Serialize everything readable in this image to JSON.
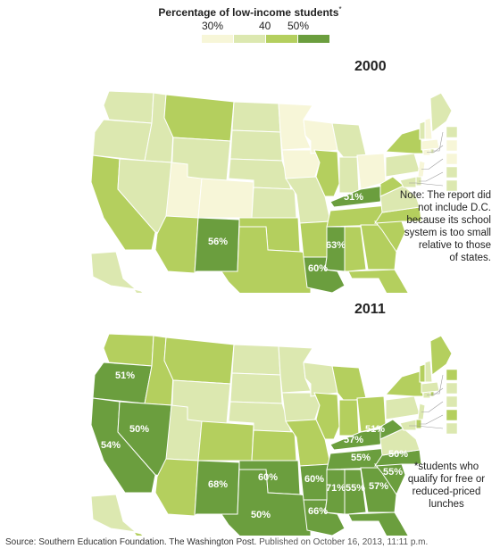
{
  "legend": {
    "title": "Percentage of low-income students",
    "title_mark": "*",
    "labels": [
      "30%",
      "40",
      "50%"
    ],
    "bins": [
      {
        "range": "below 40%",
        "color": "#f7f6d8"
      },
      {
        "range": "40–45%",
        "color": "#dce8b0"
      },
      {
        "range": "45–50%",
        "color": "#b4cf5e"
      },
      {
        "range": "50% and above",
        "color": "#6b9e3e"
      }
    ]
  },
  "maps": [
    {
      "year": "2000",
      "labels": [
        {
          "state": "NM",
          "text": "56%"
        },
        {
          "state": "KY",
          "text": "51%"
        },
        {
          "state": "MS",
          "text": "63%"
        },
        {
          "state": "LA",
          "text": "60%"
        }
      ]
    },
    {
      "year": "2011",
      "labels": [
        {
          "state": "OR",
          "text": "51%"
        },
        {
          "state": "NV",
          "text": "50%"
        },
        {
          "state": "CA",
          "text": "54%"
        },
        {
          "state": "NM",
          "text": "68%"
        },
        {
          "state": "OK",
          "text": "60%"
        },
        {
          "state": "AR",
          "text": "60%"
        },
        {
          "state": "TX",
          "text": "50%"
        },
        {
          "state": "KY",
          "text": "57%"
        },
        {
          "state": "TN",
          "text": "55%"
        },
        {
          "state": "NC",
          "text": "50%"
        },
        {
          "state": "SC",
          "text": "55%"
        },
        {
          "state": "MS",
          "text": "71%"
        },
        {
          "state": "AL",
          "text": "55%"
        },
        {
          "state": "GA",
          "text": "57%"
        },
        {
          "state": "LA",
          "text": "66%"
        },
        {
          "state": "FL",
          "text": "56%"
        },
        {
          "state": "WV",
          "text": "51%"
        }
      ]
    }
  ],
  "note": [
    "Note: The report did",
    "not include D.C.",
    "because its school",
    "system is too small",
    "relative to those",
    "of states."
  ],
  "footnote": [
    "*students who",
    "qualify for free or",
    "reduced-priced",
    "lunches"
  ],
  "source": {
    "text": "Source: Southern Education Foundation. The Washington Post.",
    "published": "Published on October 16, 2013, 11:11 p.m."
  }
}
